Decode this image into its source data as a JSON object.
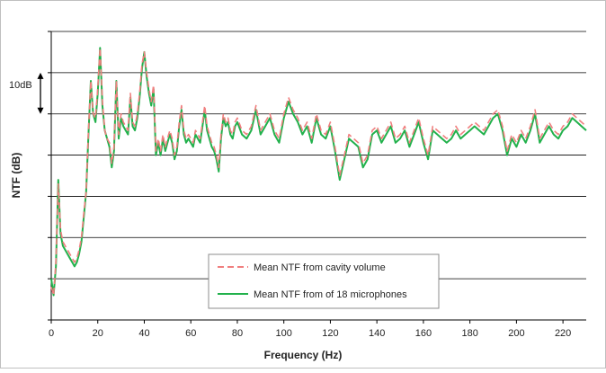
{
  "chart_data": {
    "type": "line",
    "title": "",
    "xlabel": "Frequency (Hz)",
    "ylabel": "NTF (dB)",
    "xlim": [
      0,
      230
    ],
    "ylim": [
      0,
      70
    ],
    "x_ticks": [
      "0",
      "20",
      "40",
      "60",
      "80",
      "100",
      "120",
      "140",
      "160",
      "180",
      "200",
      "220"
    ],
    "y_tick_labels_shown": false,
    "grid": "horizontal",
    "legend_position": "bottom-center",
    "annotation": {
      "text": "10dB",
      "from_y": 60,
      "to_y": 50
    },
    "series": [
      {
        "name": "Mean NTF from cavity volume",
        "style": "dashed",
        "color": "#f07f7f",
        "x": [
          0,
          1,
          2,
          3,
          4,
          5,
          6,
          7,
          8,
          9,
          10,
          11,
          12,
          13,
          14,
          15,
          16,
          17,
          18,
          19,
          20,
          21,
          22,
          23,
          24,
          25,
          26,
          27,
          28,
          29,
          30,
          31,
          32,
          33,
          34,
          35,
          36,
          37,
          38,
          39,
          40,
          41,
          42,
          43,
          44,
          45,
          46,
          47,
          48,
          49,
          50,
          51,
          52,
          53,
          54,
          55,
          56,
          57,
          58,
          59,
          60,
          61,
          62,
          63,
          64,
          65,
          66,
          67,
          68,
          69,
          70,
          71,
          72,
          73,
          74,
          75,
          76,
          77,
          78,
          79,
          80,
          82,
          84,
          86,
          88,
          90,
          92,
          94,
          96,
          98,
          100,
          102,
          104,
          106,
          108,
          110,
          112,
          114,
          116,
          118,
          120,
          122,
          124,
          126,
          128,
          130,
          132,
          134,
          136,
          138,
          140,
          142,
          144,
          146,
          148,
          150,
          152,
          154,
          156,
          158,
          160,
          162,
          164,
          166,
          168,
          170,
          172,
          174,
          176,
          178,
          180,
          182,
          184,
          186,
          188,
          190,
          192,
          194,
          196,
          198,
          200,
          202,
          204,
          206,
          208,
          210,
          212,
          214,
          216,
          218,
          220,
          222,
          224,
          226,
          228,
          230
        ],
        "y": [
          8,
          6,
          14,
          33,
          22,
          19,
          18,
          17,
          16,
          15,
          14,
          15,
          17,
          20,
          26,
          31,
          46,
          58,
          50,
          49,
          56,
          66,
          53,
          46,
          44,
          43,
          38,
          42,
          58,
          45,
          50,
          48,
          47,
          46,
          55,
          48,
          47,
          50,
          55,
          62,
          65,
          60,
          56,
          53,
          57,
          41,
          44,
          41,
          45,
          42,
          44,
          46,
          44,
          40,
          42,
          48,
          52,
          46,
          44,
          45,
          44,
          43,
          46,
          45,
          44,
          48,
          52,
          47,
          45,
          43,
          42,
          40,
          37,
          45,
          50,
          48,
          49,
          46,
          45,
          48,
          49,
          46,
          45,
          47,
          52,
          46,
          48,
          50,
          46,
          44,
          50,
          54,
          51,
          49,
          46,
          48,
          44,
          50,
          46,
          45,
          48,
          42,
          35,
          40,
          45,
          44,
          43,
          38,
          40,
          46,
          47,
          44,
          46,
          48,
          44,
          45,
          47,
          43,
          46,
          49,
          44,
          40,
          47,
          46,
          45,
          44,
          45,
          47,
          45,
          46,
          47,
          48,
          47,
          46,
          48,
          50,
          51,
          47,
          41,
          45,
          43,
          46,
          44,
          47,
          51,
          44,
          46,
          48,
          46,
          45,
          47,
          48,
          50,
          49,
          48,
          47
        ]
      },
      {
        "name": "Mean NTF from of 18 microphones",
        "style": "solid",
        "color": "#22b14c",
        "x": [
          0,
          1,
          2,
          3,
          4,
          5,
          6,
          7,
          8,
          9,
          10,
          11,
          12,
          13,
          14,
          15,
          16,
          17,
          18,
          19,
          20,
          21,
          22,
          23,
          24,
          25,
          26,
          27,
          28,
          29,
          30,
          31,
          32,
          33,
          34,
          35,
          36,
          37,
          38,
          39,
          40,
          41,
          42,
          43,
          44,
          45,
          46,
          47,
          48,
          49,
          50,
          51,
          52,
          53,
          54,
          55,
          56,
          57,
          58,
          59,
          60,
          61,
          62,
          63,
          64,
          65,
          66,
          67,
          68,
          69,
          70,
          71,
          72,
          73,
          74,
          75,
          76,
          77,
          78,
          79,
          80,
          82,
          84,
          86,
          88,
          90,
          92,
          94,
          96,
          98,
          100,
          102,
          104,
          106,
          108,
          110,
          112,
          114,
          116,
          118,
          120,
          122,
          124,
          126,
          128,
          130,
          132,
          134,
          136,
          138,
          140,
          142,
          144,
          146,
          148,
          150,
          152,
          154,
          156,
          158,
          160,
          162,
          164,
          166,
          168,
          170,
          172,
          174,
          176,
          178,
          180,
          182,
          184,
          186,
          188,
          190,
          192,
          194,
          196,
          198,
          200,
          202,
          204,
          206,
          208,
          210,
          212,
          214,
          216,
          218,
          220,
          222,
          224,
          226,
          228,
          230
        ],
        "y": [
          10,
          6,
          13,
          34,
          21,
          18,
          17,
          16,
          15,
          14,
          13,
          14,
          16,
          19,
          25,
          31,
          45,
          58,
          50,
          48,
          55,
          66,
          52,
          46,
          44,
          42,
          37,
          41,
          58,
          44,
          49,
          47,
          46,
          45,
          54,
          47,
          46,
          49,
          54,
          61,
          65,
          59,
          55,
          52,
          56,
          40,
          43,
          40,
          44,
          41,
          43,
          45,
          43,
          39,
          41,
          47,
          51,
          45,
          43,
          44,
          43,
          42,
          45,
          44,
          43,
          47,
          51,
          46,
          44,
          42,
          41,
          39,
          36,
          44,
          49,
          47,
          48,
          45,
          44,
          47,
          48,
          45,
          44,
          46,
          51,
          45,
          47,
          49,
          45,
          43,
          49,
          53,
          50,
          48,
          45,
          47,
          43,
          49,
          45,
          44,
          47,
          41,
          34,
          39,
          44,
          43,
          42,
          37,
          39,
          45,
          46,
          43,
          45,
          47,
          43,
          44,
          46,
          42,
          45,
          48,
          43,
          39,
          46,
          45,
          44,
          43,
          44,
          46,
          44,
          45,
          46,
          47,
          46,
          45,
          47,
          49,
          50,
          46,
          40,
          44,
          42,
          45,
          43,
          46,
          50,
          43,
          45,
          47,
          45,
          44,
          46,
          47,
          49,
          48,
          47,
          46
        ]
      }
    ]
  }
}
